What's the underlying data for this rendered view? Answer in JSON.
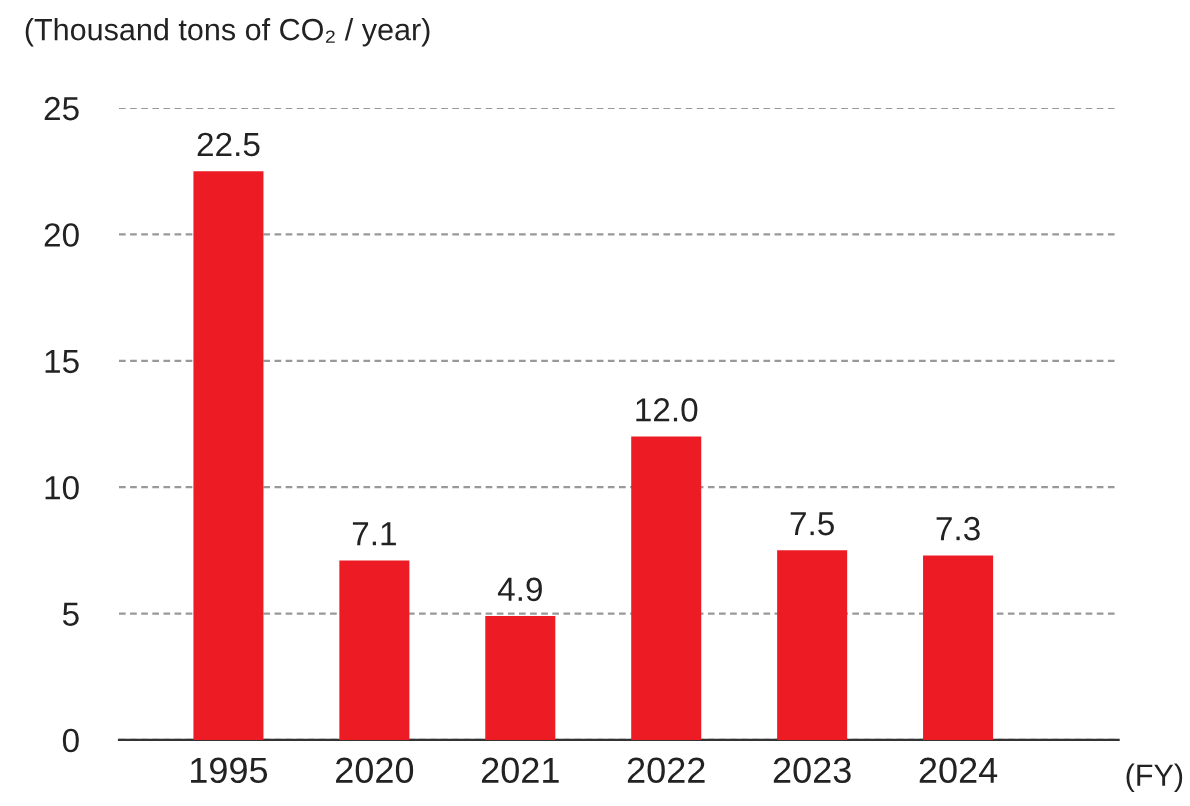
{
  "chart_data": {
    "type": "bar",
    "ylabel": "(Thousand tons of CO₂ / year)",
    "xlabel": "(FY)",
    "categories": [
      "1995",
      "2020",
      "2021",
      "2022",
      "2023",
      "2024"
    ],
    "values": [
      22.5,
      7.1,
      4.9,
      12.0,
      7.5,
      7.3
    ],
    "value_labels": [
      "22.5",
      "7.1",
      "4.9",
      "12.0",
      "7.5",
      "7.3"
    ],
    "color": "#ed1c24",
    "ylim": [
      0,
      25
    ],
    "yticks": [
      0,
      5,
      10,
      15,
      20,
      25
    ],
    "grid": "y"
  }
}
